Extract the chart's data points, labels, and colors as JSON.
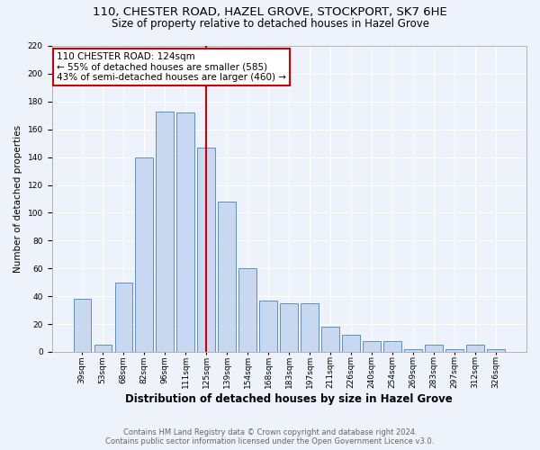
{
  "title1": "110, CHESTER ROAD, HAZEL GROVE, STOCKPORT, SK7 6HE",
  "title2": "Size of property relative to detached houses in Hazel Grove",
  "xlabel": "Distribution of detached houses by size in Hazel Grove",
  "ylabel": "Number of detached properties",
  "categories": [
    "39sqm",
    "53sqm",
    "68sqm",
    "82sqm",
    "96sqm",
    "111sqm",
    "125sqm",
    "139sqm",
    "154sqm",
    "168sqm",
    "183sqm",
    "197sqm",
    "211sqm",
    "226sqm",
    "240sqm",
    "254sqm",
    "269sqm",
    "283sqm",
    "297sqm",
    "312sqm",
    "326sqm"
  ],
  "values": [
    38,
    5,
    50,
    140,
    173,
    172,
    147,
    108,
    60,
    37,
    35,
    35,
    18,
    12,
    8,
    8,
    2,
    5,
    2,
    5,
    2
  ],
  "bar_color": "#c8d8f0",
  "bar_edge_color": "#6090c0",
  "vline_x": 5.97,
  "vline_color": "#cc0000",
  "annotation_line1": "110 CHESTER ROAD: 124sqm",
  "annotation_line2": "← 55% of detached houses are smaller (585)",
  "annotation_line3": "43% of semi-detached houses are larger (460) →",
  "annotation_box_color": "#ffffff",
  "annotation_box_edge": "#cc0000",
  "footer1": "Contains HM Land Registry data © Crown copyright and database right 2024.",
  "footer2": "Contains public sector information licensed under the Open Government Licence v3.0.",
  "ylim": [
    0,
    220
  ],
  "yticks": [
    0,
    20,
    40,
    60,
    80,
    100,
    120,
    140,
    160,
    180,
    200,
    220
  ],
  "background_color": "#eef2fb",
  "grid_color": "#ffffff",
  "title_fontsize": 9.5,
  "subtitle_fontsize": 8.5,
  "xlabel_fontsize": 8.5,
  "ylabel_fontsize": 7.5,
  "tick_fontsize": 6.5,
  "annotation_fontsize": 7.5,
  "footer_fontsize": 6.0,
  "footer_color": "#666666"
}
